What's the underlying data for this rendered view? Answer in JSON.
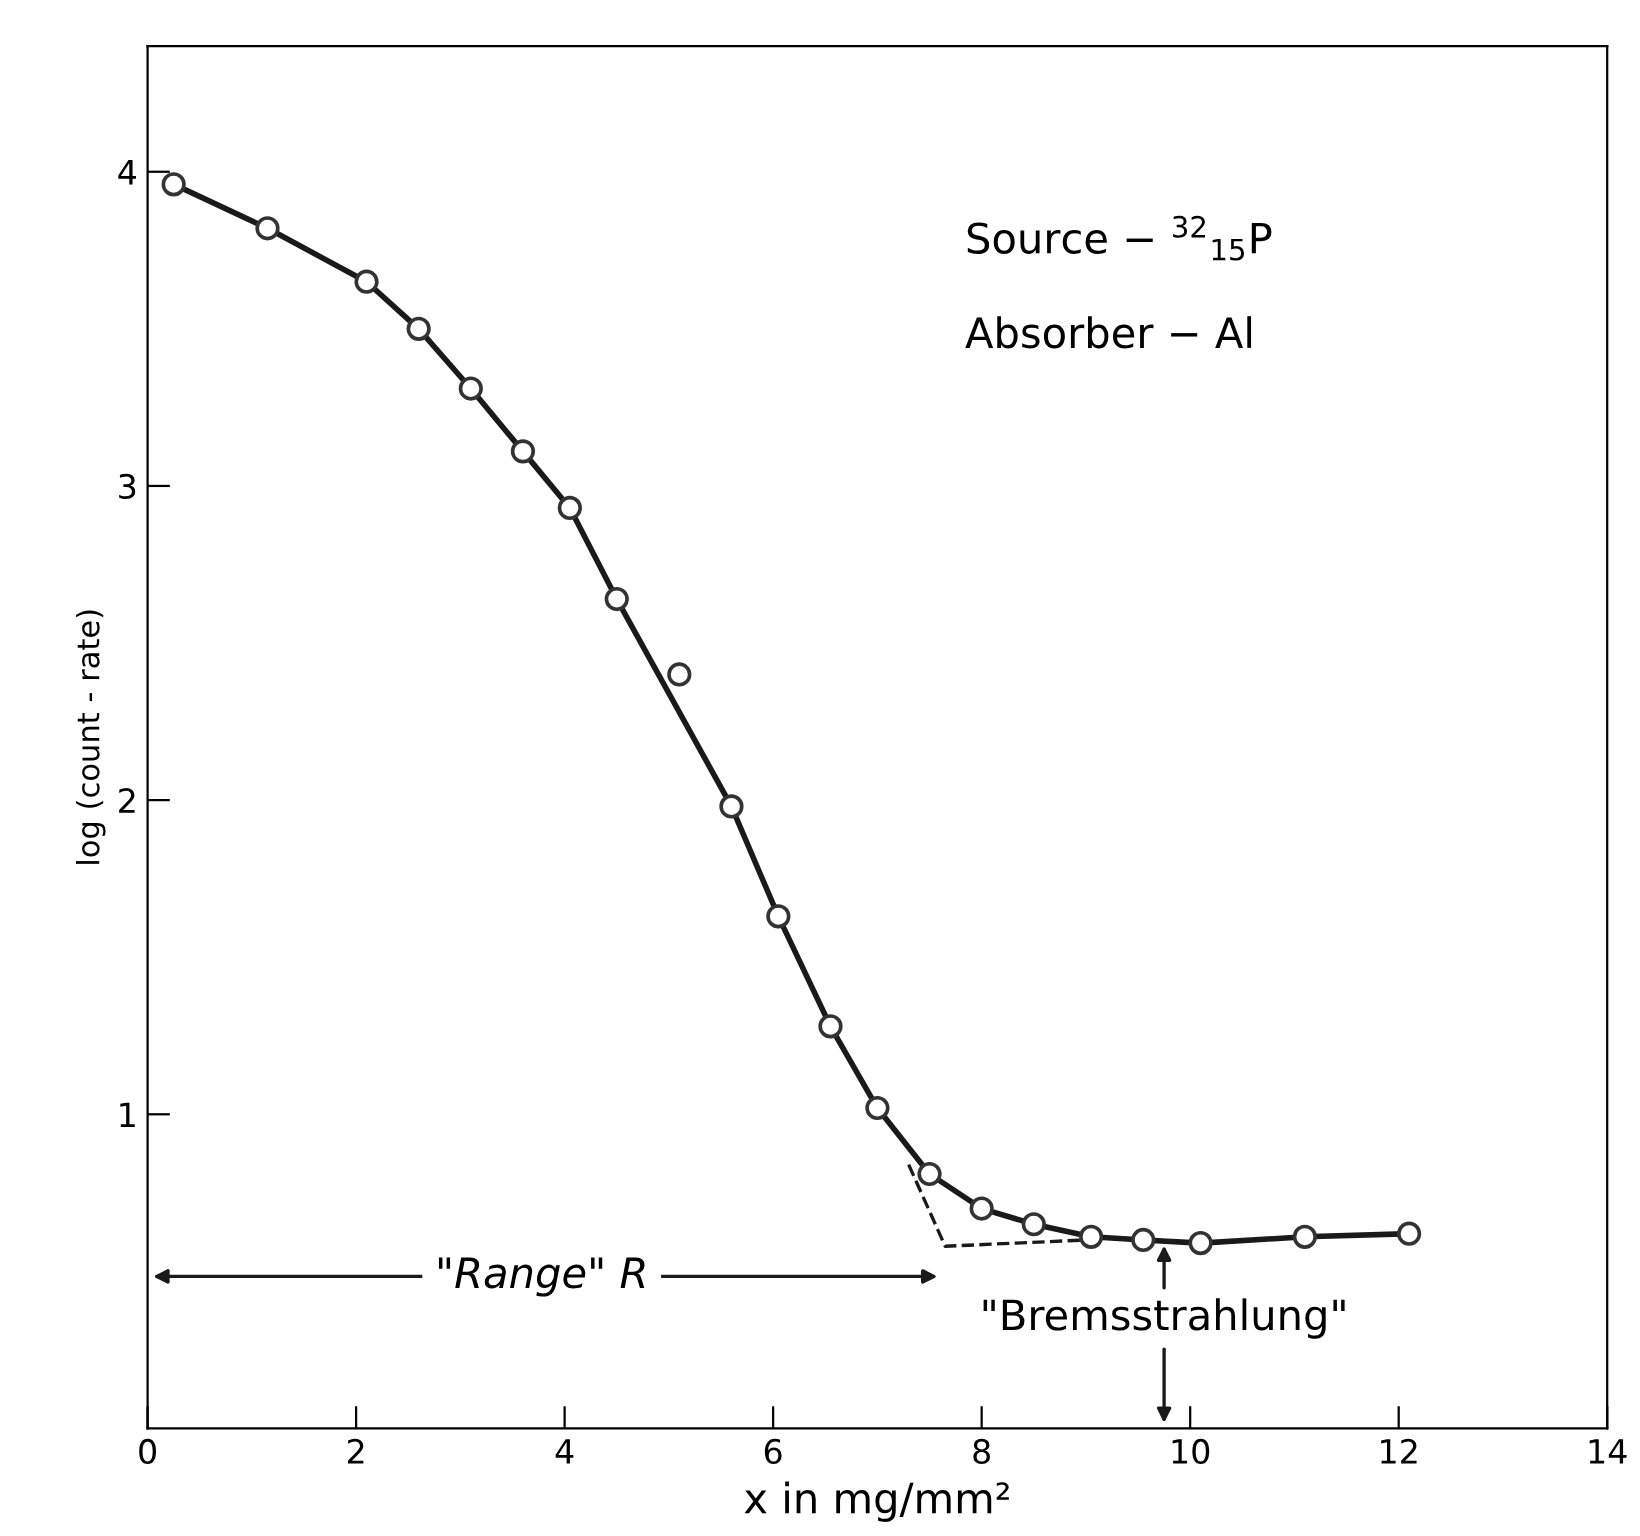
{
  "chart_data": {
    "type": "scatter",
    "xlabel": "x in mg/mm²",
    "ylabel": "log (count - rate)",
    "xlim": [
      0,
      14
    ],
    "ylim": [
      0,
      4.4
    ],
    "xticks": [
      0,
      2,
      4,
      6,
      8,
      10,
      12,
      14
    ],
    "yticks": [
      1,
      2,
      3,
      4
    ],
    "grid": false,
    "legend": false,
    "series": [
      {
        "type": "line",
        "color": "#1a1a1a",
        "line_style": "solid",
        "marker": "none",
        "x": [
          0.25,
          1.15,
          2.1,
          2.6,
          3.1,
          3.6,
          4.05,
          4.5,
          5.6,
          6.05,
          6.55,
          7.0,
          7.5,
          8.0,
          8.5,
          9.05,
          9.55,
          10.1,
          11.1,
          12.1
        ],
        "values": [
          3.96,
          3.82,
          3.65,
          3.5,
          3.31,
          3.11,
          2.93,
          2.64,
          1.98,
          1.63,
          1.28,
          1.02,
          0.81,
          0.7,
          0.65,
          0.61,
          0.6,
          0.59,
          0.61,
          0.62
        ]
      },
      {
        "type": "line",
        "color": "#1a1a1a",
        "line_style": "dashed",
        "marker": "none",
        "x": [
          7.3,
          7.65,
          9.0
        ],
        "values": [
          0.84,
          0.58,
          0.6
        ]
      },
      {
        "color": "#333333",
        "marker": "circle",
        "x": [
          0.25,
          1.15,
          2.1,
          2.6,
          3.1,
          3.6,
          4.05,
          4.5,
          5.1,
          5.6,
          6.05,
          6.55,
          7.0,
          7.5,
          8.0,
          8.5,
          9.05,
          9.55,
          10.1,
          11.1,
          12.1
        ],
        "values": [
          3.96,
          3.82,
          3.65,
          3.5,
          3.31,
          3.11,
          2.93,
          2.64,
          2.4,
          1.98,
          1.63,
          1.28,
          1.02,
          0.81,
          0.7,
          0.65,
          0.61,
          0.6,
          0.59,
          0.61,
          0.62
        ]
      }
    ],
    "annotations": [
      "Source − $^{32}$$_{15}$P",
      "Absorber − Al",
      "\"Range\" R",
      {
        "text": "\"Bremsstrahlung\"",
        "x": 9.75,
        "y": 0.6
      }
    ]
  }
}
